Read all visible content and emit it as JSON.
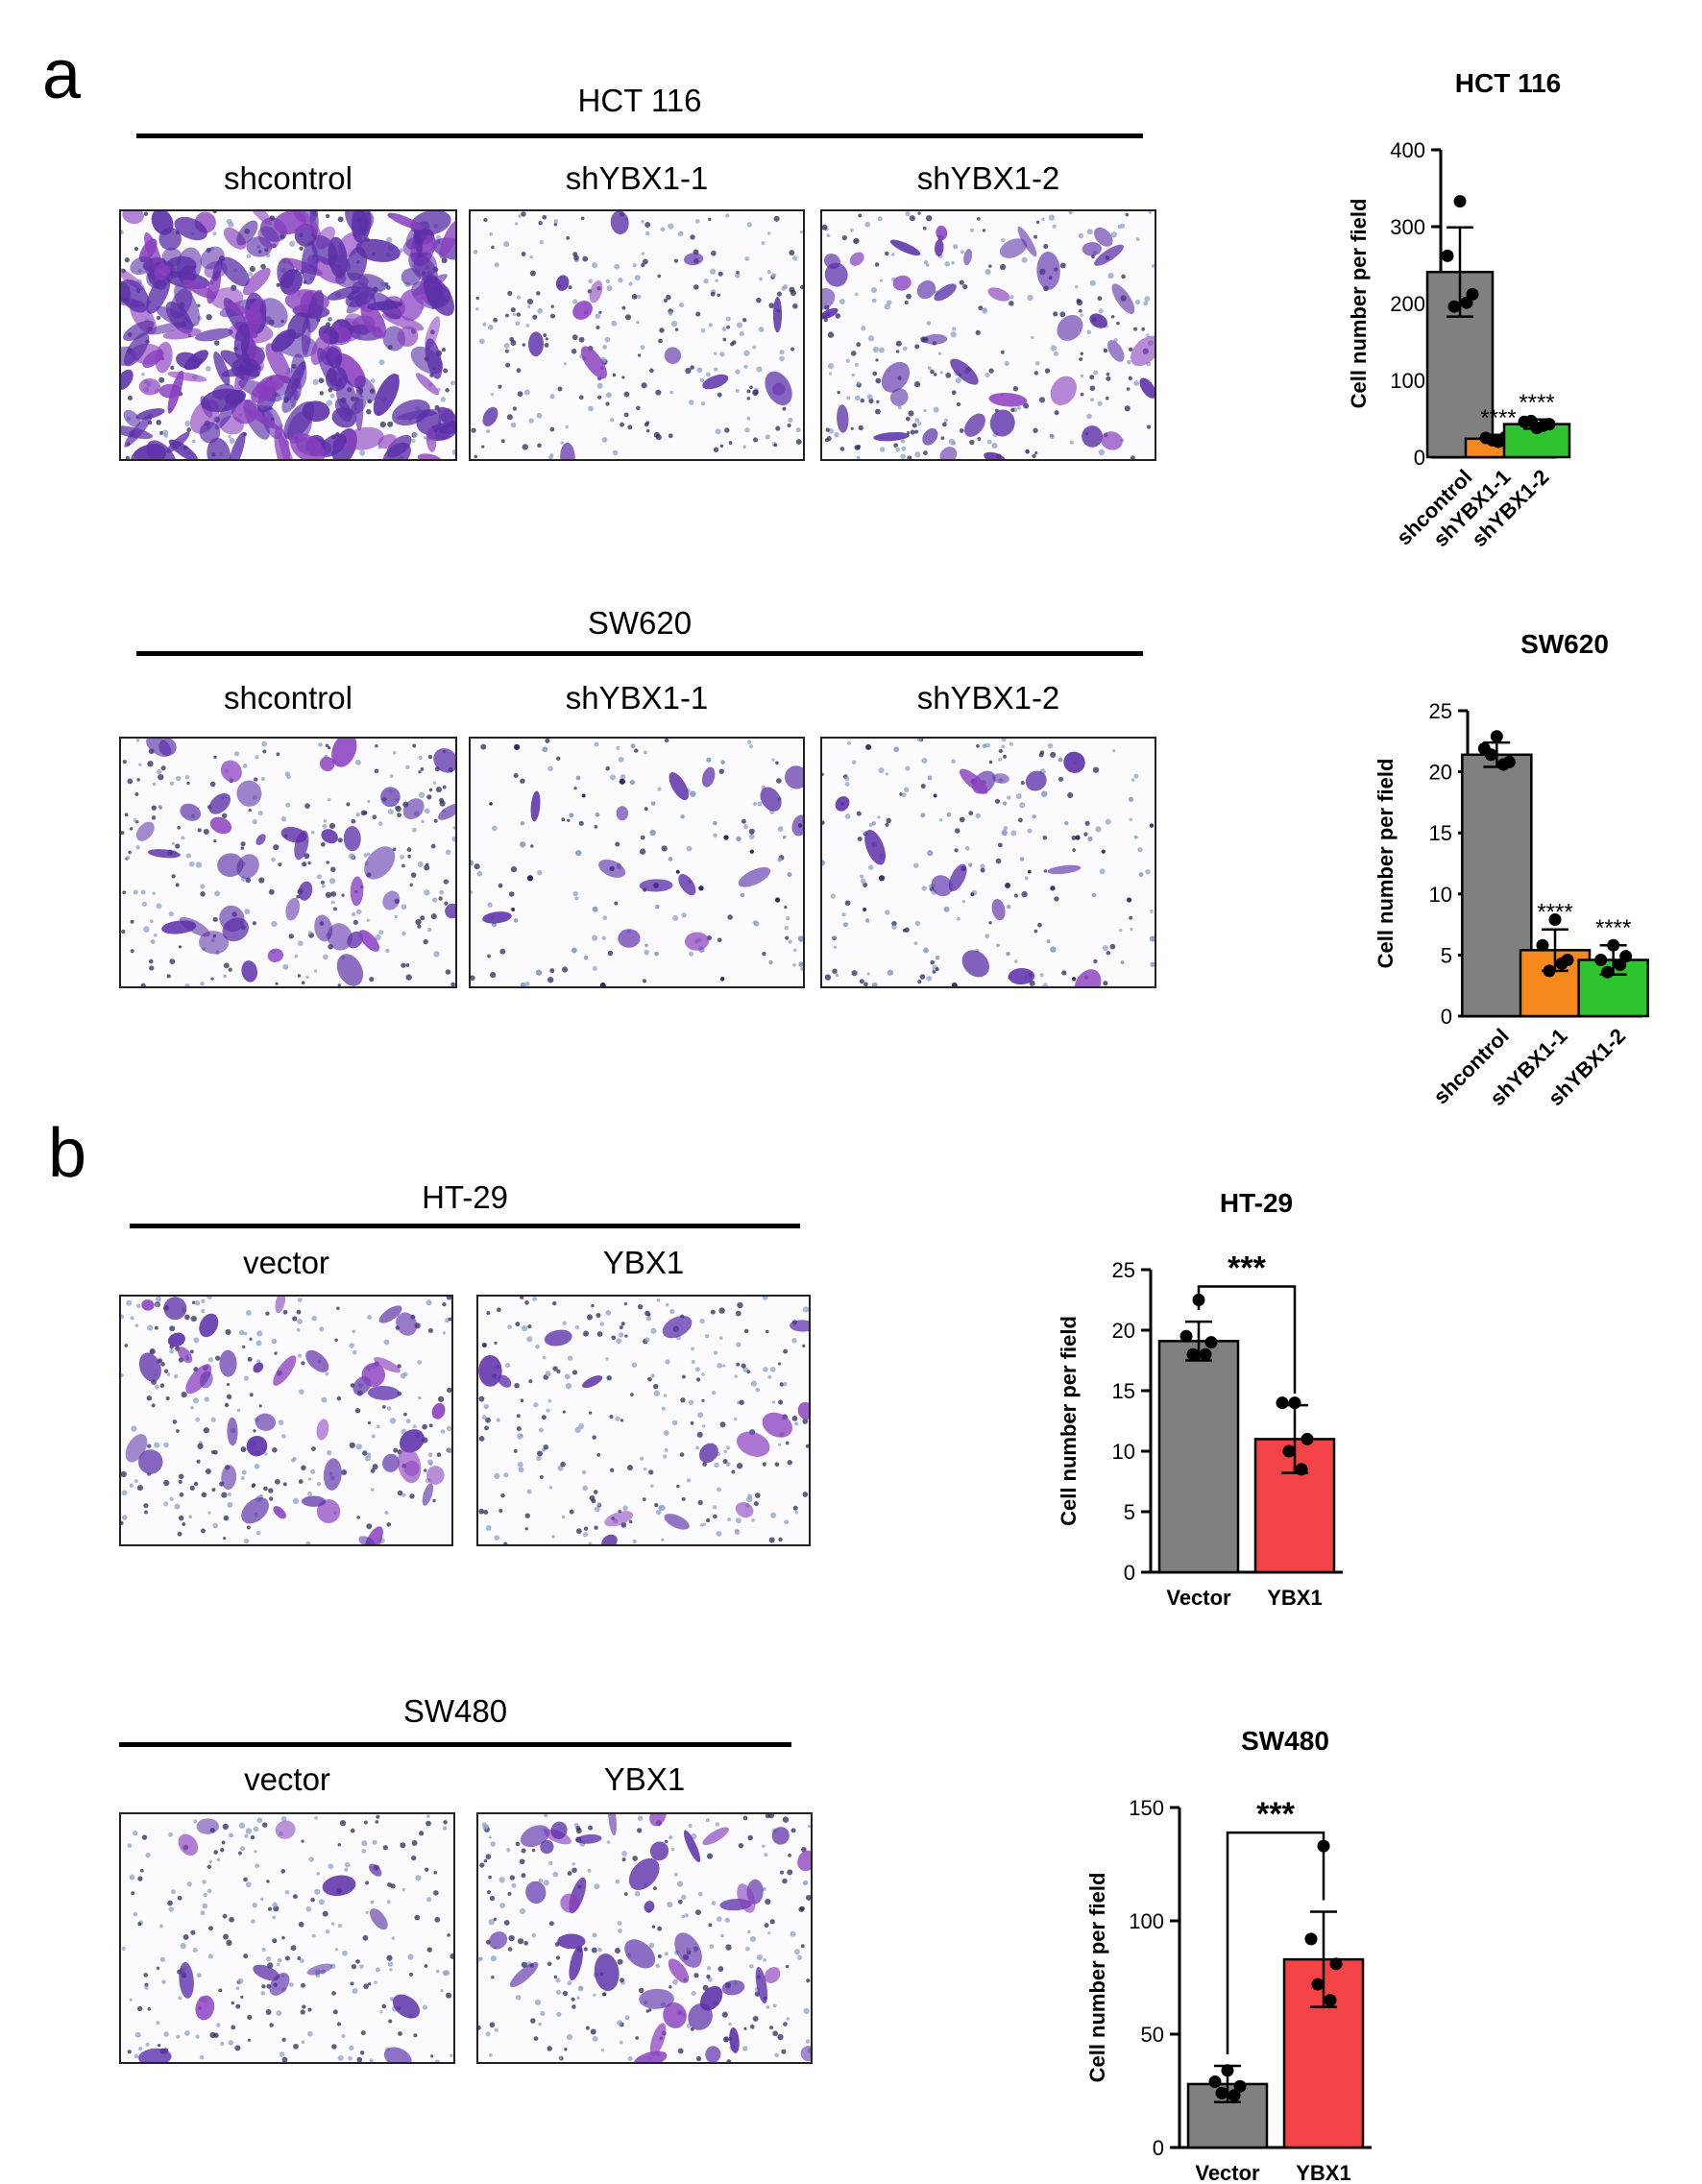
{
  "panels": {
    "a": {
      "letter": "a",
      "groups": [
        {
          "title": "HCT 116",
          "conditions": [
            "shcontrol",
            "shYBX1-1",
            "shYBX1-2"
          ],
          "stain_density": [
            "dense",
            "sparse",
            "medium"
          ]
        },
        {
          "title": "SW620",
          "conditions": [
            "shcontrol",
            "shYBX1-1",
            "shYBX1-2"
          ],
          "stain_density": [
            "medium",
            "sparse",
            "sparse"
          ]
        }
      ]
    },
    "b": {
      "letter": "b",
      "groups": [
        {
          "title": "HT-29",
          "conditions": [
            "vector",
            "YBX1"
          ],
          "stain_density": [
            "medium",
            "sparse"
          ]
        },
        {
          "title": "SW480",
          "conditions": [
            "vector",
            "YBX1"
          ],
          "stain_density": [
            "sparse",
            "medium"
          ]
        }
      ]
    }
  },
  "colors": {
    "gray": "#808080",
    "orange": "#f5891e",
    "green": "#2fc32f",
    "red": "#f44347",
    "stain": "#5b2fa8"
  },
  "chart_data": [
    {
      "type": "bar",
      "title": "HCT 116",
      "ylabel": "Cell number per field",
      "categories": [
        "shcontrol",
        "shYBX1-1",
        "shYBX1-2"
      ],
      "values": [
        241,
        24,
        43
      ],
      "errors": [
        58,
        5,
        6
      ],
      "points": [
        [
          333,
          262,
          212,
          196,
          201
        ],
        [
          20,
          25,
          27,
          22,
          26
        ],
        [
          38,
          46,
          43,
          47,
          41
        ]
      ],
      "colors": [
        "#808080",
        "#f5891e",
        "#2fc32f"
      ],
      "annotations": [
        "",
        "****",
        "****"
      ],
      "ylim": [
        0,
        400
      ],
      "yticks": [
        0,
        100,
        200,
        300,
        400
      ],
      "rotate_labels": true
    },
    {
      "type": "bar",
      "title": "SW620",
      "ylabel": "Cell number per field",
      "categories": [
        "shcontrol",
        "shYBX1-1",
        "shYBX1-2"
      ],
      "values": [
        21.4,
        5.4,
        4.6
      ],
      "errors": [
        1.0,
        1.7,
        1.2
      ],
      "points": [
        [
          22.9,
          21.9,
          20.8,
          21.4,
          20.6
        ],
        [
          7.9,
          5.8,
          4.6,
          3.7,
          4.3
        ],
        [
          5.8,
          4.6,
          4.9,
          3.6,
          4.2
        ]
      ],
      "colors": [
        "#808080",
        "#f5891e",
        "#2fc32f"
      ],
      "annotations": [
        "",
        "****",
        "****"
      ],
      "ylim": [
        0,
        25
      ],
      "yticks": [
        0,
        5,
        10,
        15,
        20,
        25
      ],
      "rotate_labels": true
    },
    {
      "type": "bar",
      "title": "HT-29",
      "ylabel": "Cell number per field",
      "categories": [
        "Vector",
        "YBX1"
      ],
      "values": [
        19.1,
        11.0
      ],
      "errors": [
        1.6,
        2.8
      ],
      "points": [
        [
          22.5,
          19.5,
          19.0,
          18.0,
          18.0
        ],
        [
          14.0,
          14.0,
          11.0,
          10.0,
          8.5
        ]
      ],
      "colors": [
        "#808080",
        "#f44347"
      ],
      "annotations": [],
      "bracket": "***",
      "ylim": [
        0,
        25
      ],
      "yticks": [
        0,
        5,
        10,
        15,
        20,
        25
      ],
      "rotate_labels": false
    },
    {
      "type": "bar",
      "title": "SW480",
      "ylabel": "Cell number per field",
      "categories": [
        "Vector",
        "YBX1"
      ],
      "values": [
        28,
        83
      ],
      "errors": [
        8,
        21
      ],
      "points": [
        [
          34,
          29,
          27,
          24,
          23
        ],
        [
          133,
          92,
          81,
          72,
          65
        ]
      ],
      "colors": [
        "#808080",
        "#f44347"
      ],
      "annotations": [],
      "bracket": "***",
      "ylim": [
        0,
        150
      ],
      "yticks": [
        0,
        50,
        100,
        150
      ],
      "rotate_labels": false
    }
  ]
}
